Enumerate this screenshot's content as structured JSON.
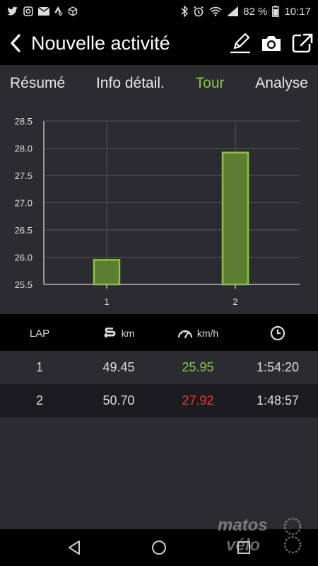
{
  "status": {
    "battery": "82 %",
    "time": "10:17"
  },
  "app_bar": {
    "title": "Nouvelle activité"
  },
  "tabs": [
    {
      "label": "Résumé",
      "active": false
    },
    {
      "label": "Info détail.",
      "active": false
    },
    {
      "label": "Tour",
      "active": true
    },
    {
      "label": "Analyse",
      "active": false
    }
  ],
  "chart_data": {
    "type": "bar",
    "categories": [
      "1",
      "2"
    ],
    "values": [
      25.95,
      27.92
    ],
    "ylim": [
      25.5,
      28.5
    ],
    "yticks": [
      "25.5",
      "26.0",
      "26.5",
      "27.0",
      "27.5",
      "28.0",
      "28.5"
    ],
    "grid": true,
    "bar_color": "#8bc34a",
    "background": "#2b2b30"
  },
  "table": {
    "headers": {
      "lap": "LAP",
      "distance_unit": "km",
      "speed_unit": "km/h"
    },
    "rows": [
      {
        "lap": "1",
        "distance": "49.45",
        "speed": "25.95",
        "time": "1:54:20",
        "speed_color": "green"
      },
      {
        "lap": "2",
        "distance": "50.70",
        "speed": "27.92",
        "time": "1:48:57",
        "speed_color": "red"
      }
    ]
  },
  "colors": {
    "accent": "#8bc34a",
    "max": "#e53935",
    "panel": "#2b2b30",
    "panel_alt": "#1c1c20"
  },
  "watermark": {
    "line1": "matos",
    "line2": "vélo"
  }
}
